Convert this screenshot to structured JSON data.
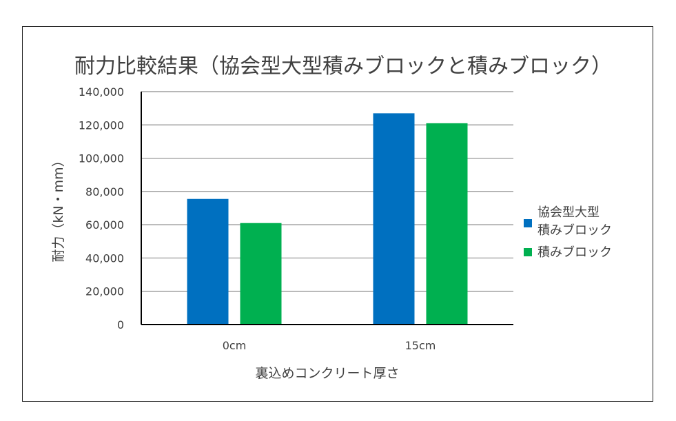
{
  "chart_data": {
    "type": "bar",
    "title": "耐力比較結果（協会型大型積みブロックと積みブロック）",
    "xlabel": "裏込めコンクリート厚さ",
    "ylabel": "耐力（kN・mm）",
    "categories": [
      "0cm",
      "15cm"
    ],
    "series": [
      {
        "name": "協会型大型積みブロック",
        "values": [
          75500,
          127000
        ],
        "color": "#0070C0"
      },
      {
        "name": "積みブロック",
        "values": [
          61000,
          121000
        ],
        "color": "#00B050"
      }
    ],
    "ylim": [
      0,
      140000
    ],
    "yticks": [
      0,
      20000,
      40000,
      60000,
      80000,
      100000,
      120000,
      140000
    ],
    "ytick_labels": [
      "0",
      "20,000",
      "40,000",
      "60,000",
      "80,000",
      "100,000",
      "120,000",
      "140,000"
    ],
    "legend_position": "right",
    "grid": true
  }
}
